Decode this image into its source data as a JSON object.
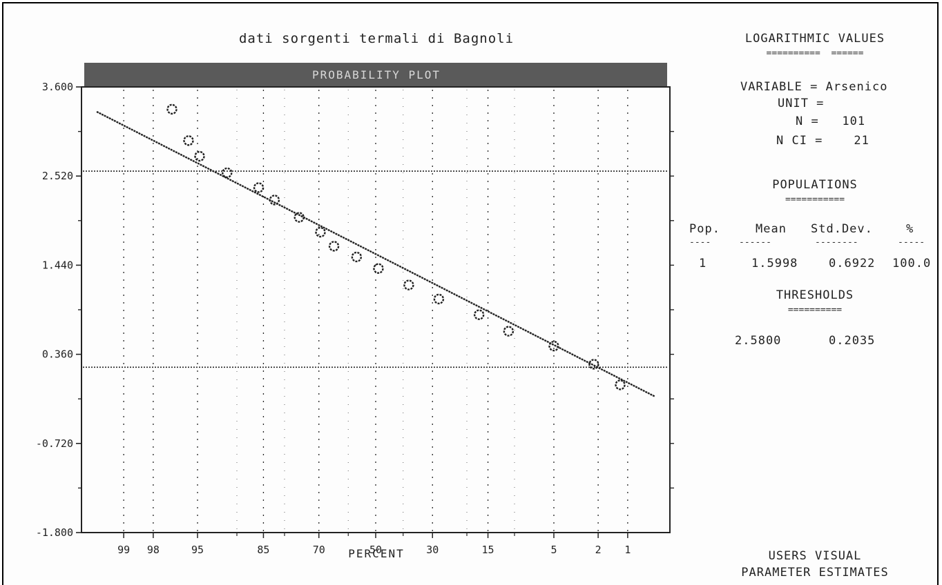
{
  "chart_data": {
    "type": "scatter",
    "title": "dati sorgenti termali di Bagnoli",
    "banner": "PROBABILITY PLOT",
    "xlabel": "PERCENT",
    "ylabel": "",
    "y_ticks": [
      "3.600",
      "2.520",
      "1.440",
      "0.360",
      "-0.720",
      "-1.800"
    ],
    "ylim": [
      -1.8,
      3.6
    ],
    "x_tick_labels": [
      "99",
      "98",
      "95",
      "85",
      "70",
      "50",
      "30",
      "15",
      "5",
      "2",
      "1"
    ],
    "x_tick_percent": [
      99,
      98,
      95,
      85,
      70,
      50,
      30,
      15,
      5,
      2,
      1
    ],
    "x_scale": "normal probability (reversed: 99 at left, 1 at right)",
    "series": [
      {
        "kind": "points",
        "points": [
          {
            "percent": 97.0,
            "value": 3.33
          },
          {
            "percent": 95.8,
            "value": 2.95
          },
          {
            "percent": 94.8,
            "value": 2.76
          },
          {
            "percent": 91.5,
            "value": 2.56
          },
          {
            "percent": 86.0,
            "value": 2.38
          },
          {
            "percent": 82.5,
            "value": 2.23
          },
          {
            "percent": 76.0,
            "value": 2.02
          },
          {
            "percent": 69.5,
            "value": 1.84
          },
          {
            "percent": 65.0,
            "value": 1.67
          },
          {
            "percent": 57.0,
            "value": 1.54
          },
          {
            "percent": 49.0,
            "value": 1.4
          },
          {
            "percent": 38.0,
            "value": 1.2
          },
          {
            "percent": 28.0,
            "value": 1.03
          },
          {
            "percent": 17.0,
            "value": 0.84
          },
          {
            "percent": 11.0,
            "value": 0.64
          },
          {
            "percent": 5.0,
            "value": 0.46
          },
          {
            "percent": 2.2,
            "value": 0.24
          },
          {
            "percent": 1.2,
            "value": -0.01
          }
        ]
      },
      {
        "kind": "fitted-line",
        "percent": [
          99.5,
          0.5
        ],
        "value": [
          3.3,
          -0.15
        ]
      }
    ],
    "thresholds": [
      2.58,
      0.2035
    ],
    "grid": "dotted vertical at x ticks; horizontal dotted threshold lines"
  },
  "panel": {
    "log_header": "LOGARITHMIC VALUES",
    "log_under": "==========  ======",
    "variable_line": "VARIABLE = Arsenico",
    "unit_line": "UNIT =",
    "n_line": "N =   101",
    "nci_line": "N CI =    21",
    "populations_header": "POPULATIONS",
    "populations_under": "===========",
    "columns": [
      "Pop.",
      "Mean",
      "Std.Dev.",
      "%"
    ],
    "columns_under": [
      "----",
      "------",
      "--------",
      "-----"
    ],
    "row": [
      "1",
      "1.5998",
      "0.6922",
      "100.0"
    ],
    "thresholds_header": "THRESHOLDS",
    "thresholds_under": "==========",
    "threshold_values": [
      "2.5800",
      "0.2035"
    ],
    "footer_line1": "USERS VISUAL",
    "footer_line2": "PARAMETER ESTIMATES"
  },
  "colors": {
    "ink": "#222222",
    "banner": "#555555"
  }
}
